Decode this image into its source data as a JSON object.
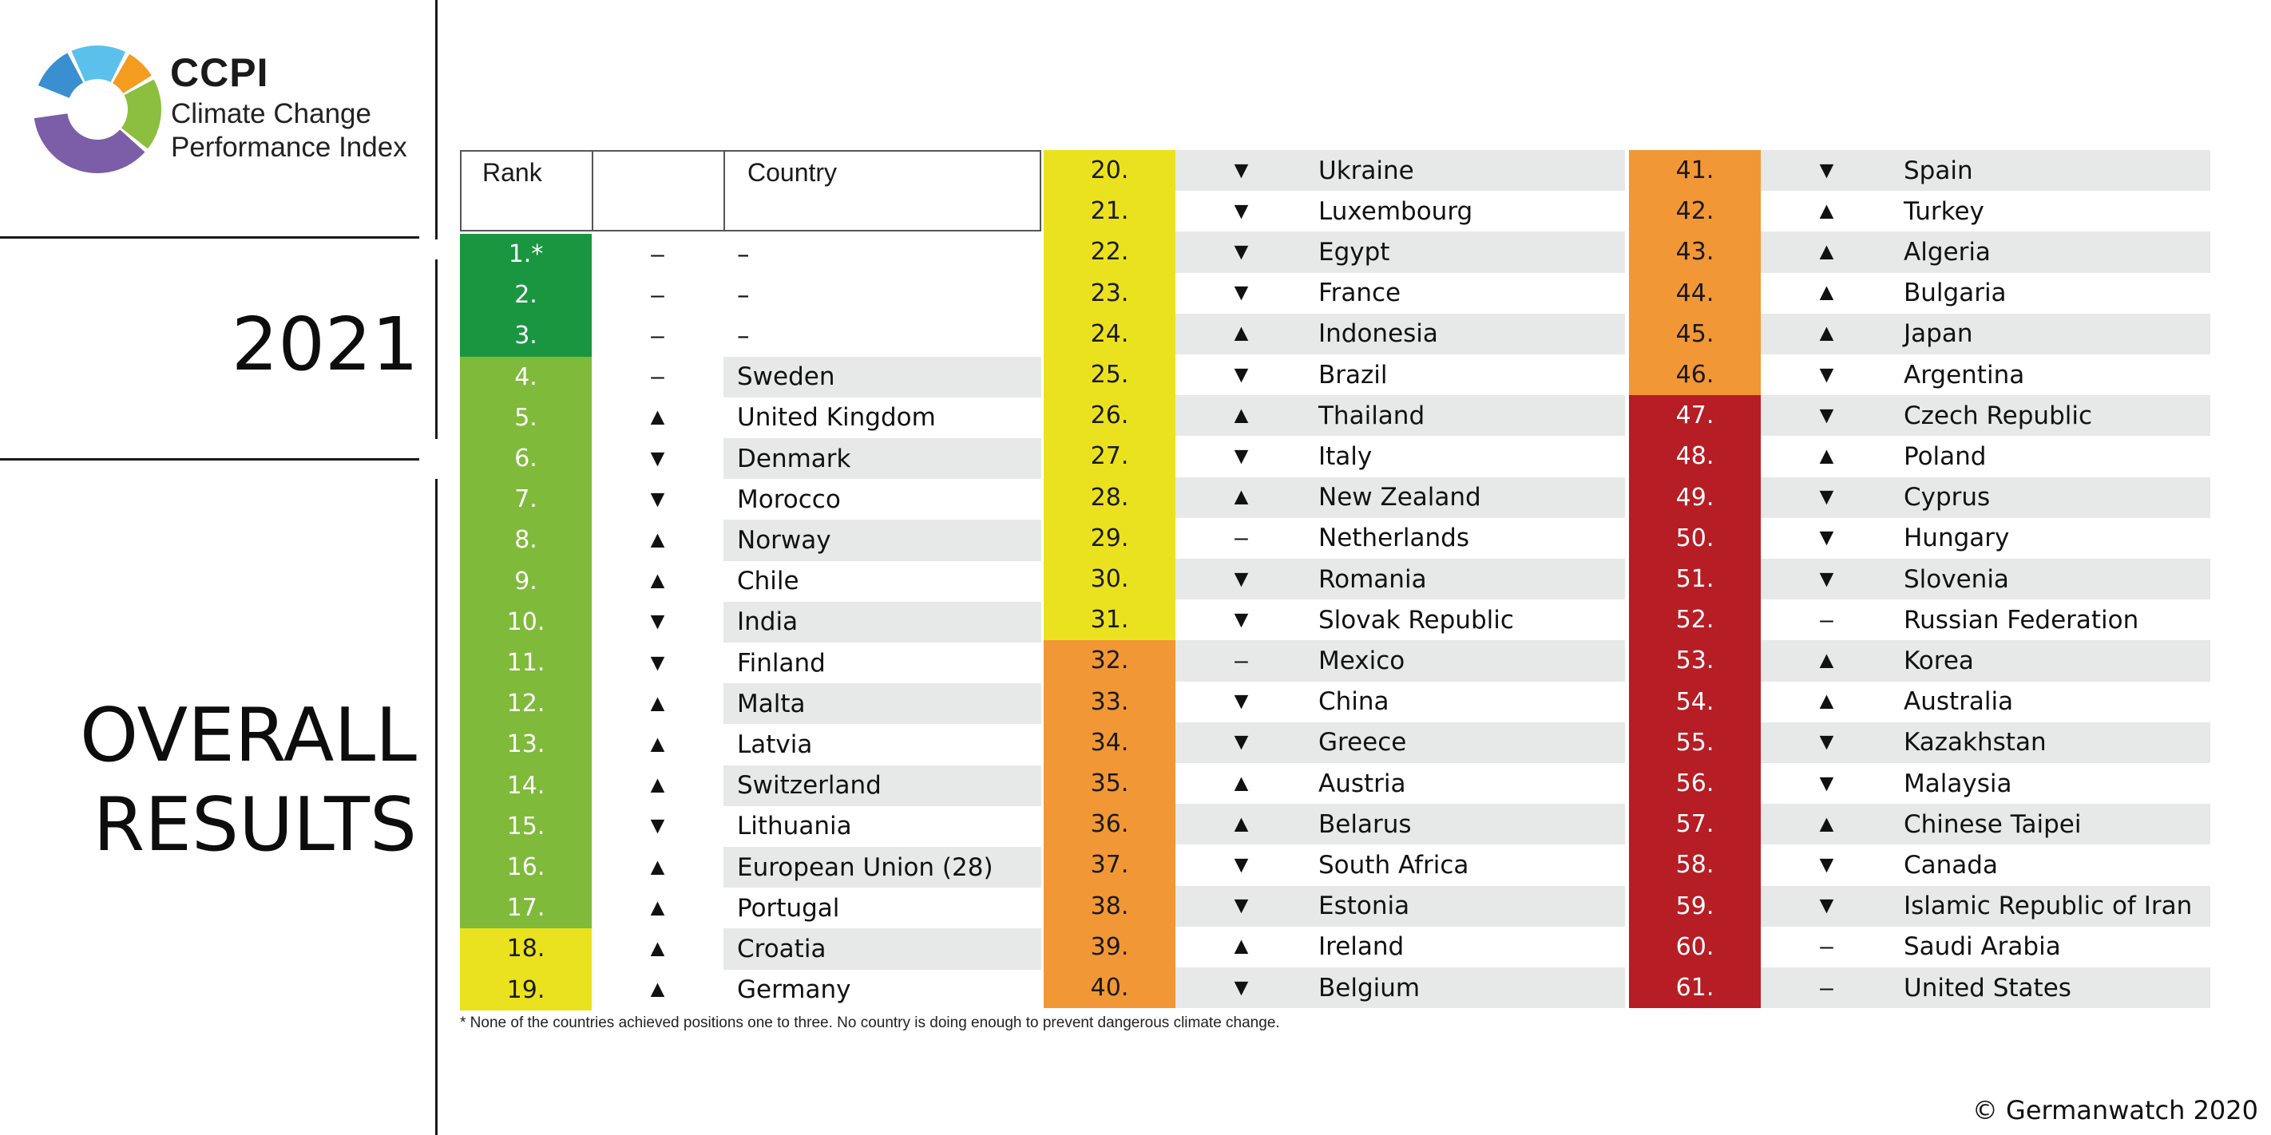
{
  "logo": {
    "abbr": "CCPI",
    "line1": "Climate Change",
    "line2": "Performance Index",
    "colors": [
      "#3a8fd0",
      "#5bc0eb",
      "#f39c1f",
      "#8cbf3f",
      "#7b5ea7"
    ]
  },
  "year": "2021",
  "headline": [
    "OVERALL",
    "RESULTS"
  ],
  "table_header": {
    "rank": "Rank",
    "trend": "",
    "country": "Country"
  },
  "colors": {
    "dark_green": "#1a9641",
    "light_green": "#7fba3a",
    "yellow": "#ebe21f",
    "orange": "#f29735",
    "red": "#b61d24",
    "row_shade": "#e7e8e8"
  },
  "columns": [
    [
      {
        "rank": "1.*",
        "trend": "–",
        "country": "–",
        "color": "dark_green"
      },
      {
        "rank": "2.",
        "trend": "–",
        "country": "–",
        "color": "dark_green"
      },
      {
        "rank": "3.",
        "trend": "–",
        "country": "–",
        "color": "dark_green"
      },
      {
        "rank": "4.",
        "trend": "–",
        "country": "Sweden",
        "color": "light_green"
      },
      {
        "rank": "5.",
        "trend": "▲",
        "country": "United Kingdom",
        "color": "light_green"
      },
      {
        "rank": "6.",
        "trend": "▼",
        "country": "Denmark",
        "color": "light_green"
      },
      {
        "rank": "7.",
        "trend": "▼",
        "country": "Morocco",
        "color": "light_green"
      },
      {
        "rank": "8.",
        "trend": "▲",
        "country": "Norway",
        "color": "light_green"
      },
      {
        "rank": "9.",
        "trend": "▲",
        "country": "Chile",
        "color": "light_green"
      },
      {
        "rank": "10.",
        "trend": "▼",
        "country": "India",
        "color": "light_green"
      },
      {
        "rank": "11.",
        "trend": "▼",
        "country": "Finland",
        "color": "light_green"
      },
      {
        "rank": "12.",
        "trend": "▲",
        "country": "Malta",
        "color": "light_green"
      },
      {
        "rank": "13.",
        "trend": "▲",
        "country": "Latvia",
        "color": "light_green"
      },
      {
        "rank": "14.",
        "trend": "▲",
        "country": "Switzerland",
        "color": "light_green"
      },
      {
        "rank": "15.",
        "trend": "▼",
        "country": "Lithuania",
        "color": "light_green"
      },
      {
        "rank": "16.",
        "trend": "▲",
        "country": "European Union (28)",
        "color": "light_green"
      },
      {
        "rank": "17.",
        "trend": "▲",
        "country": "Portugal",
        "color": "light_green"
      },
      {
        "rank": "18.",
        "trend": "▲",
        "country": "Croatia",
        "color": "yellow"
      },
      {
        "rank": "19.",
        "trend": "▲",
        "country": "Germany",
        "color": "yellow"
      }
    ],
    [
      {
        "rank": "20.",
        "trend": "▼",
        "country": "Ukraine",
        "color": "yellow"
      },
      {
        "rank": "21.",
        "trend": "▼",
        "country": "Luxembourg",
        "color": "yellow"
      },
      {
        "rank": "22.",
        "trend": "▼",
        "country": "Egypt",
        "color": "yellow"
      },
      {
        "rank": "23.",
        "trend": "▼",
        "country": "France",
        "color": "yellow"
      },
      {
        "rank": "24.",
        "trend": "▲",
        "country": "Indonesia",
        "color": "yellow"
      },
      {
        "rank": "25.",
        "trend": "▼",
        "country": "Brazil",
        "color": "yellow"
      },
      {
        "rank": "26.",
        "trend": "▲",
        "country": "Thailand",
        "color": "yellow"
      },
      {
        "rank": "27.",
        "trend": "▼",
        "country": "Italy",
        "color": "yellow"
      },
      {
        "rank": "28.",
        "trend": "▲",
        "country": "New Zealand",
        "color": "yellow"
      },
      {
        "rank": "29.",
        "trend": "–",
        "country": "Netherlands",
        "color": "yellow"
      },
      {
        "rank": "30.",
        "trend": "▼",
        "country": "Romania",
        "color": "yellow"
      },
      {
        "rank": "31.",
        "trend": "▼",
        "country": "Slovak Republic",
        "color": "yellow"
      },
      {
        "rank": "32.",
        "trend": "–",
        "country": "Mexico",
        "color": "orange"
      },
      {
        "rank": "33.",
        "trend": "▼",
        "country": "China",
        "color": "orange"
      },
      {
        "rank": "34.",
        "trend": "▼",
        "country": "Greece",
        "color": "orange"
      },
      {
        "rank": "35.",
        "trend": "▲",
        "country": "Austria",
        "color": "orange"
      },
      {
        "rank": "36.",
        "trend": "▲",
        "country": "Belarus",
        "color": "orange"
      },
      {
        "rank": "37.",
        "trend": "▼",
        "country": "South Africa",
        "color": "orange"
      },
      {
        "rank": "38.",
        "trend": "▼",
        "country": "Estonia",
        "color": "orange"
      },
      {
        "rank": "39.",
        "trend": "▲",
        "country": "Ireland",
        "color": "orange"
      },
      {
        "rank": "40.",
        "trend": "▼",
        "country": "Belgium",
        "color": "orange"
      }
    ],
    [
      {
        "rank": "41.",
        "trend": "▼",
        "country": "Spain",
        "color": "orange"
      },
      {
        "rank": "42.",
        "trend": "▲",
        "country": "Turkey",
        "color": "orange"
      },
      {
        "rank": "43.",
        "trend": "▲",
        "country": "Algeria",
        "color": "orange"
      },
      {
        "rank": "44.",
        "trend": "▲",
        "country": "Bulgaria",
        "color": "orange"
      },
      {
        "rank": "45.",
        "trend": "▲",
        "country": "Japan",
        "color": "orange"
      },
      {
        "rank": "46.",
        "trend": "▼",
        "country": "Argentina",
        "color": "orange"
      },
      {
        "rank": "47.",
        "trend": "▼",
        "country": "Czech Republic",
        "color": "red"
      },
      {
        "rank": "48.",
        "trend": "▲",
        "country": "Poland",
        "color": "red"
      },
      {
        "rank": "49.",
        "trend": "▼",
        "country": "Cyprus",
        "color": "red"
      },
      {
        "rank": "50.",
        "trend": "▼",
        "country": "Hungary",
        "color": "red"
      },
      {
        "rank": "51.",
        "trend": "▼",
        "country": "Slovenia",
        "color": "red"
      },
      {
        "rank": "52.",
        "trend": "–",
        "country": "Russian Federation",
        "color": "red"
      },
      {
        "rank": "53.",
        "trend": "▲",
        "country": "Korea",
        "color": "red"
      },
      {
        "rank": "54.",
        "trend": "▲",
        "country": "Australia",
        "color": "red"
      },
      {
        "rank": "55.",
        "trend": "▼",
        "country": "Kazakhstan",
        "color": "red"
      },
      {
        "rank": "56.",
        "trend": "▼",
        "country": "Malaysia",
        "color": "red"
      },
      {
        "rank": "57.",
        "trend": "▲",
        "country": "Chinese Taipei",
        "color": "red"
      },
      {
        "rank": "58.",
        "trend": "▼",
        "country": "Canada",
        "color": "red"
      },
      {
        "rank": "59.",
        "trend": "▼",
        "country": "Islamic Republic of Iran",
        "color": "red"
      },
      {
        "rank": "60.",
        "trend": "–",
        "country": "Saudi Arabia",
        "color": "red"
      },
      {
        "rank": "61.",
        "trend": "–",
        "country": "United States",
        "color": "red"
      }
    ]
  ],
  "footnote": "* None of the countries achieved positions one to three. No country is doing enough to prevent dangerous climate change.",
  "copyright": "© Germanwatch 2020"
}
